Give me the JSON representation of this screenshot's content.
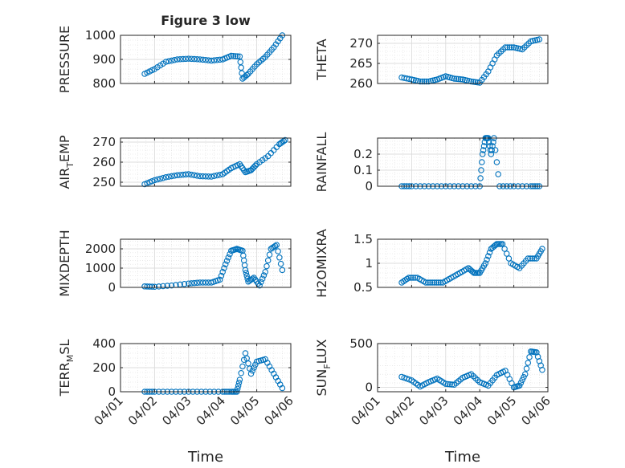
{
  "figure": {
    "title": "Figure 3 low",
    "xlabel": "Time",
    "marker_color": "#0072BD",
    "xticks": [
      "04/01",
      "04/02",
      "04/03",
      "04/04",
      "04/05",
      "04/06"
    ]
  },
  "chart_data": [
    {
      "type": "scatter",
      "ylabel": "PRESSURE",
      "ylim": [
        800,
        1000
      ],
      "yticks": [
        800,
        900,
        1000
      ],
      "ytick_labels": [
        "800",
        "900",
        "1000"
      ],
      "grid": true,
      "x": [
        "04/01 17:00",
        "04/02 00:00",
        "04/02 08:00",
        "04/02 16:00",
        "04/03 00:00",
        "04/03 08:00",
        "04/03 16:00",
        "04/04 00:00",
        "04/04 06:00",
        "04/04 12:00",
        "04/04 14:00",
        "04/04 18:00",
        "04/05 00:00",
        "04/05 06:00",
        "04/05 12:00",
        "04/05 18:00"
      ],
      "y": [
        840,
        860,
        890,
        900,
        903,
        900,
        895,
        900,
        915,
        912,
        820,
        840,
        880,
        910,
        950,
        1000
      ]
    },
    {
      "type": "scatter",
      "ylabel": "THETA",
      "ylim": [
        260,
        272
      ],
      "yticks": [
        260,
        265,
        270
      ],
      "ytick_labels": [
        "260",
        "265",
        "270"
      ],
      "grid": true,
      "x": [
        "04/01 17:00",
        "04/02 00:00",
        "04/02 06:00",
        "04/02 12:00",
        "04/02 18:00",
        "04/03 00:00",
        "04/03 06:00",
        "04/03 12:00",
        "04/03 18:00",
        "04/04 00:00",
        "04/04 06:00",
        "04/04 12:00",
        "04/04 18:00",
        "04/05 00:00",
        "04/05 06:00",
        "04/05 12:00",
        "04/05 18:00"
      ],
      "y": [
        261.5,
        261,
        260.5,
        260.5,
        261,
        261.8,
        261.2,
        261,
        260.5,
        260.2,
        263,
        267,
        269,
        269,
        268.5,
        270.5,
        271
      ]
    },
    {
      "type": "scatter",
      "ylabel": "AIR_TEMP",
      "ylim": [
        248,
        272
      ],
      "yticks": [
        250,
        260,
        270
      ],
      "ytick_labels": [
        "250",
        "260",
        "270"
      ],
      "grid": true,
      "x": [
        "04/01 17:00",
        "04/02 00:00",
        "04/02 08:00",
        "04/02 16:00",
        "04/03 00:00",
        "04/03 08:00",
        "04/03 16:00",
        "04/04 00:00",
        "04/04 06:00",
        "04/04 12:00",
        "04/04 16:00",
        "04/04 20:00",
        "04/05 00:00",
        "04/05 08:00",
        "04/05 16:00",
        "04/05 20:00"
      ],
      "y": [
        249,
        251,
        252.5,
        253.5,
        254,
        253,
        252.8,
        254,
        257,
        259,
        255,
        256,
        259,
        263,
        269,
        271
      ]
    },
    {
      "type": "scatter",
      "ylabel": "RAINFALL",
      "ylim": [
        0,
        0.3
      ],
      "yticks": [
        0,
        0.1,
        0.2
      ],
      "ytick_labels": [
        "0",
        "0.1",
        "0.2"
      ],
      "grid": true,
      "x": [
        "04/01 17:00",
        "04/02 00:00",
        "04/02 12:00",
        "04/03 00:00",
        "04/03 12:00",
        "04/04 00:00",
        "04/04 02:00",
        "04/04 04:00",
        "04/04 06:00",
        "04/04 08:00",
        "04/04 10:00",
        "04/04 14:00",
        "04/05 00:00",
        "04/05 12:00",
        "04/05 18:00"
      ],
      "y": [
        0,
        0,
        0,
        0,
        0,
        0,
        0.2,
        0.3,
        0.3,
        0.2,
        0.3,
        0,
        0,
        0,
        0
      ]
    },
    {
      "type": "scatter",
      "ylabel": "MIXDEPTH",
      "ylim": [
        0,
        2500
      ],
      "yticks": [
        0,
        1000,
        2000
      ],
      "ytick_labels": [
        "0",
        "1000",
        "2000"
      ],
      "grid": true,
      "x": [
        "04/01 17:00",
        "04/02 00:00",
        "04/02 12:00",
        "04/03 00:00",
        "04/03 08:00",
        "04/03 16:00",
        "04/03 22:00",
        "04/04 02:00",
        "04/04 06:00",
        "04/04 10:00",
        "04/04 14:00",
        "04/04 16:00",
        "04/04 18:00",
        "04/04 22:00",
        "04/05 02:00",
        "04/05 06:00",
        "04/05 10:00",
        "04/05 14:00",
        "04/05 18:00"
      ],
      "y": [
        50,
        30,
        100,
        200,
        250,
        250,
        400,
        1200,
        1900,
        2000,
        1900,
        900,
        300,
        500,
        100,
        800,
        2000,
        2200,
        900
      ]
    },
    {
      "type": "scatter",
      "ylabel": "H2OMIXRA",
      "ylim": [
        0.5,
        1.5
      ],
      "yticks": [
        0.5,
        1,
        1.5
      ],
      "ytick_labels": [
        "0.5",
        "1",
        "1.5"
      ],
      "grid": true,
      "x": [
        "04/01 17:00",
        "04/01 22:00",
        "04/02 04:00",
        "04/02 10:00",
        "04/02 16:00",
        "04/02 22:00",
        "04/03 04:00",
        "04/03 10:00",
        "04/03 16:00",
        "04/03 20:00",
        "04/04 00:00",
        "04/04 04:00",
        "04/04 08:00",
        "04/04 12:00",
        "04/04 16:00",
        "04/04 22:00",
        "04/05 04:00",
        "04/05 10:00",
        "04/05 16:00",
        "04/05 20:00"
      ],
      "y": [
        0.6,
        0.7,
        0.7,
        0.6,
        0.6,
        0.6,
        0.7,
        0.8,
        0.9,
        0.8,
        0.8,
        1.0,
        1.3,
        1.4,
        1.4,
        1.0,
        0.9,
        1.1,
        1.1,
        1.3
      ]
    },
    {
      "type": "scatter",
      "ylabel": "TERR_MSL",
      "ylim": [
        0,
        400
      ],
      "yticks": [
        0,
        200,
        400
      ],
      "ytick_labels": [
        "0",
        "200",
        "400"
      ],
      "grid": true,
      "x": [
        "04/01 17:00",
        "04/02 00:00",
        "04/02 12:00",
        "04/03 00:00",
        "04/03 12:00",
        "04/04 00:00",
        "04/04 06:00",
        "04/04 10:00",
        "04/04 12:00",
        "04/04 16:00",
        "04/04 20:00",
        "04/05 00:00",
        "04/05 06:00",
        "04/05 12:00",
        "04/05 18:00"
      ],
      "y": [
        0,
        0,
        0,
        0,
        0,
        0,
        0,
        0,
        100,
        320,
        150,
        250,
        270,
        150,
        30
      ]
    },
    {
      "type": "scatter",
      "ylabel": "SUN_FLUX",
      "ylim": [
        -50,
        500
      ],
      "yticks": [
        0,
        500
      ],
      "ytick_labels": [
        "0",
        "500"
      ],
      "grid": true,
      "x": [
        "04/01 17:00",
        "04/02 00:00",
        "04/02 06:00",
        "04/02 12:00",
        "04/02 18:00",
        "04/03 00:00",
        "04/03 06:00",
        "04/03 12:00",
        "04/03 18:00",
        "04/04 00:00",
        "04/04 06:00",
        "04/04 12:00",
        "04/04 18:00",
        "04/05 00:00",
        "04/05 04:00",
        "04/05 08:00",
        "04/05 12:00",
        "04/05 16:00",
        "04/05 20:00"
      ],
      "y": [
        120,
        80,
        10,
        60,
        100,
        40,
        30,
        110,
        150,
        60,
        20,
        140,
        190,
        0,
        20,
        150,
        410,
        400,
        200
      ]
    }
  ]
}
